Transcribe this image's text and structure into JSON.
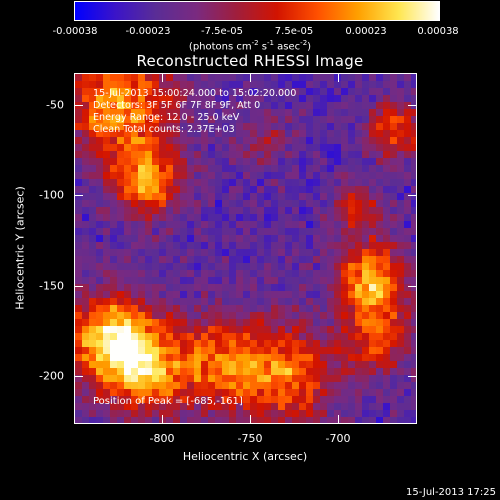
{
  "colorbar": {
    "ticks": [
      "-0.00038",
      "-0.00023",
      "-7.5e-05",
      "7.5e-05",
      "0.00023",
      "0.00038"
    ],
    "units_main": "(photons cm",
    "units_sup1": "-2",
    "units_mid1": " s",
    "units_sup2": "-1",
    "units_mid2": " asec",
    "units_sup3": "-2",
    "units_end": ")"
  },
  "title": "Reconstructed RHESSI Image",
  "info": {
    "time": "15-Jul-2013 15:00:24.000 to 15:02:20.000",
    "detectors": "Detectors: 3F 5F 6F 7F 8F 9F, Att 0",
    "energy": "Energy Range: 12.0 - 25.0 keV",
    "clean": "Clean     Total counts: 2.37E+03"
  },
  "axes": {
    "xlabel": "Heliocentric X (arcsec)",
    "ylabel": "Heliocentric Y (arcsec)",
    "xticks": [
      "-800",
      "-750",
      "-700"
    ],
    "yticks": [
      "-50",
      "-100",
      "-150",
      "-200"
    ],
    "xlim": [
      -847,
      -743
    ],
    "ylim": [
      -225,
      -32
    ]
  },
  "peak_text": "Position of Peak = [-685,-161]",
  "timestamp": "15-Jul-2013 17:25",
  "colors": {
    "background": "#000000",
    "colormap": [
      "#0000ff",
      "#3b14c8",
      "#5a2d96",
      "#7a2a80",
      "#a01e3c",
      "#d21400",
      "#ff5000",
      "#ffa000",
      "#ffe650",
      "#ffffff"
    ]
  }
}
